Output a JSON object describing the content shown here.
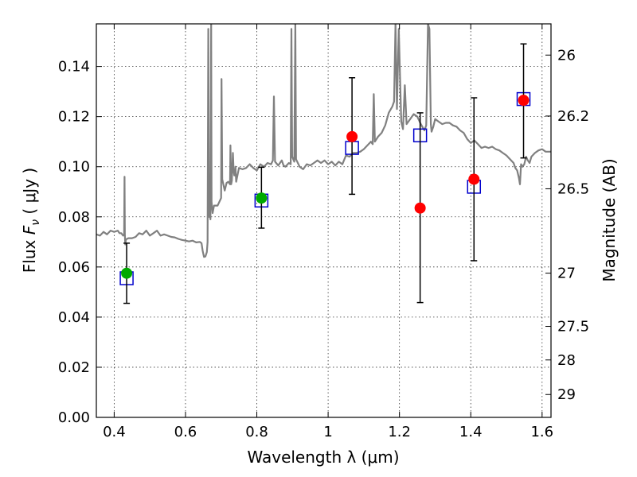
{
  "chart_data": {
    "type": "scatter",
    "xlabel": "Wavelength  λ (μm)",
    "ylabel": "Flux  F_ν  ( μJy )",
    "y2label": "Magnitude (AB)",
    "xlim": [
      0.35,
      1.625
    ],
    "ylim": [
      0.0,
      0.157
    ],
    "x_ticks": [
      0.4,
      0.6,
      0.8,
      1.0,
      1.2,
      1.4,
      1.6
    ],
    "x_tick_labels": [
      "0.4",
      "0.6",
      "0.8",
      "1",
      "1.2",
      "1.4",
      "1.6"
    ],
    "y_ticks": [
      0.0,
      0.02,
      0.04,
      0.06,
      0.08,
      0.1,
      0.12,
      0.14
    ],
    "y_tick_labels": [
      "0.00",
      "0.02",
      "0.04",
      "0.06",
      "0.08",
      "0.10",
      "0.12",
      "0.14"
    ],
    "mag_ticks": [
      {
        "mag": 26.0,
        "label": "26"
      },
      {
        "mag": 26.2,
        "label": "26.2"
      },
      {
        "mag": 26.5,
        "label": "26.5"
      },
      {
        "mag": 27.0,
        "label": "27"
      },
      {
        "mag": 27.5,
        "label": "27.5"
      },
      {
        "mag": 28.0,
        "label": "28"
      },
      {
        "mag": 29.0,
        "label": "29"
      }
    ],
    "grid": true,
    "colors": {
      "spectrum": "#808080",
      "model_box": "#0000cc",
      "obs_green": "#00aa00",
      "obs_red": "#ff0000",
      "errorbar": "#000000"
    },
    "series": [
      {
        "kind": "template_spectrum",
        "points": [
          [
            0.35,
            0.073
          ],
          [
            0.36,
            0.0725
          ],
          [
            0.37,
            0.074
          ],
          [
            0.38,
            0.073
          ],
          [
            0.39,
            0.0745
          ],
          [
            0.4,
            0.074
          ],
          [
            0.41,
            0.0745
          ],
          [
            0.415,
            0.0735
          ],
          [
            0.42,
            0.0735
          ],
          [
            0.425,
            0.0725
          ],
          [
            0.428,
            0.073
          ],
          [
            0.429,
            0.096
          ],
          [
            0.43,
            0.073
          ],
          [
            0.431,
            0.069
          ],
          [
            0.433,
            0.071
          ],
          [
            0.44,
            0.0715
          ],
          [
            0.45,
            0.0715
          ],
          [
            0.46,
            0.072
          ],
          [
            0.47,
            0.0735
          ],
          [
            0.48,
            0.073
          ],
          [
            0.49,
            0.0745
          ],
          [
            0.5,
            0.0725
          ],
          [
            0.51,
            0.0735
          ],
          [
            0.52,
            0.0745
          ],
          [
            0.53,
            0.0725
          ],
          [
            0.54,
            0.073
          ],
          [
            0.55,
            0.0725
          ],
          [
            0.56,
            0.072
          ],
          [
            0.57,
            0.0718
          ],
          [
            0.58,
            0.0712
          ],
          [
            0.59,
            0.0708
          ],
          [
            0.6,
            0.0705
          ],
          [
            0.61,
            0.0702
          ],
          [
            0.62,
            0.0705
          ],
          [
            0.63,
            0.0698
          ],
          [
            0.64,
            0.07
          ],
          [
            0.645,
            0.0695
          ],
          [
            0.648,
            0.0665
          ],
          [
            0.652,
            0.064
          ],
          [
            0.656,
            0.0642
          ],
          [
            0.66,
            0.066
          ],
          [
            0.662,
            0.07
          ],
          [
            0.664,
            0.155
          ],
          [
            0.666,
            0.08
          ],
          [
            0.668,
            0.082
          ],
          [
            0.67,
            0.079
          ],
          [
            0.672,
            0.157
          ],
          [
            0.673,
            0.086
          ],
          [
            0.676,
            0.0815
          ],
          [
            0.68,
            0.0845
          ],
          [
            0.69,
            0.0845
          ],
          [
            0.7,
            0.0875
          ],
          [
            0.701,
            0.135
          ],
          [
            0.703,
            0.095
          ],
          [
            0.71,
            0.0905
          ],
          [
            0.715,
            0.0935
          ],
          [
            0.72,
            0.094
          ],
          [
            0.725,
            0.093
          ],
          [
            0.726,
            0.1085
          ],
          [
            0.728,
            0.093
          ],
          [
            0.73,
            0.0945
          ],
          [
            0.733,
            0.1055
          ],
          [
            0.735,
            0.0985
          ],
          [
            0.737,
            0.0965
          ],
          [
            0.739,
            0.0965
          ],
          [
            0.74,
            0.1
          ],
          [
            0.742,
            0.094
          ],
          [
            0.75,
            0.0995
          ],
          [
            0.76,
            0.099
          ],
          [
            0.77,
            0.0995
          ],
          [
            0.78,
            0.101
          ],
          [
            0.79,
            0.0995
          ],
          [
            0.8,
            0.0985
          ],
          [
            0.81,
            0.101
          ],
          [
            0.82,
            0.1
          ],
          [
            0.83,
            0.1015
          ],
          [
            0.84,
            0.101
          ],
          [
            0.845,
            0.1025
          ],
          [
            0.848,
            0.128
          ],
          [
            0.851,
            0.102
          ],
          [
            0.86,
            0.1005
          ],
          [
            0.87,
            0.1025
          ],
          [
            0.875,
            0.1005
          ],
          [
            0.88,
            0.1
          ],
          [
            0.89,
            0.1015
          ],
          [
            0.895,
            0.101
          ],
          [
            0.897,
            0.155
          ],
          [
            0.899,
            0.104
          ],
          [
            0.905,
            0.102
          ],
          [
            0.908,
            0.157
          ],
          [
            0.91,
            0.103
          ],
          [
            0.92,
            0.1
          ],
          [
            0.93,
            0.099
          ],
          [
            0.94,
            0.101
          ],
          [
            0.95,
            0.1005
          ],
          [
            0.96,
            0.1015
          ],
          [
            0.97,
            0.1025
          ],
          [
            0.98,
            0.1015
          ],
          [
            0.99,
            0.1025
          ],
          [
            1.0,
            0.101
          ],
          [
            1.01,
            0.102
          ],
          [
            1.02,
            0.1005
          ],
          [
            1.03,
            0.102
          ],
          [
            1.04,
            0.101
          ],
          [
            1.05,
            0.1045
          ],
          [
            1.06,
            0.104
          ],
          [
            1.07,
            0.1055
          ],
          [
            1.08,
            0.1055
          ],
          [
            1.09,
            0.106
          ],
          [
            1.1,
            0.107
          ],
          [
            1.11,
            0.1085
          ],
          [
            1.12,
            0.11
          ],
          [
            1.125,
            0.109
          ],
          [
            1.128,
            0.129
          ],
          [
            1.131,
            0.11
          ],
          [
            1.14,
            0.112
          ],
          [
            1.15,
            0.1135
          ],
          [
            1.16,
            0.1165
          ],
          [
            1.17,
            0.1215
          ],
          [
            1.18,
            0.124
          ],
          [
            1.185,
            0.126
          ],
          [
            1.189,
            0.157
          ],
          [
            1.193,
            0.123
          ],
          [
            1.198,
            0.155
          ],
          [
            1.205,
            0.118
          ],
          [
            1.21,
            0.115
          ],
          [
            1.215,
            0.1325
          ],
          [
            1.22,
            0.117
          ],
          [
            1.23,
            0.119
          ],
          [
            1.24,
            0.121
          ],
          [
            1.25,
            0.12
          ],
          [
            1.26,
            0.117
          ],
          [
            1.27,
            0.1145
          ],
          [
            1.275,
            0.1165
          ],
          [
            1.28,
            0.157
          ],
          [
            1.284,
            0.155
          ],
          [
            1.288,
            0.117
          ],
          [
            1.29,
            0.114
          ],
          [
            1.295,
            0.116
          ],
          [
            1.3,
            0.119
          ],
          [
            1.31,
            0.118
          ],
          [
            1.32,
            0.117
          ],
          [
            1.33,
            0.1175
          ],
          [
            1.34,
            0.1175
          ],
          [
            1.35,
            0.1165
          ],
          [
            1.36,
            0.116
          ],
          [
            1.37,
            0.1145
          ],
          [
            1.38,
            0.1135
          ],
          [
            1.39,
            0.111
          ],
          [
            1.4,
            0.1095
          ],
          [
            1.41,
            0.1105
          ],
          [
            1.42,
            0.109
          ],
          [
            1.43,
            0.1075
          ],
          [
            1.44,
            0.108
          ],
          [
            1.45,
            0.1075
          ],
          [
            1.46,
            0.108
          ],
          [
            1.47,
            0.107
          ],
          [
            1.48,
            0.1065
          ],
          [
            1.49,
            0.1055
          ],
          [
            1.5,
            0.1045
          ],
          [
            1.51,
            0.103
          ],
          [
            1.52,
            0.1015
          ],
          [
            1.525,
            0.0995
          ],
          [
            1.53,
            0.0985
          ],
          [
            1.535,
            0.0955
          ],
          [
            1.538,
            0.093
          ],
          [
            1.541,
            0.101
          ],
          [
            1.545,
            0.1
          ],
          [
            1.55,
            0.101
          ],
          [
            1.555,
            0.104
          ],
          [
            1.56,
            0.1025
          ],
          [
            1.565,
            0.1015
          ],
          [
            1.57,
            0.104
          ],
          [
            1.58,
            0.1055
          ],
          [
            1.59,
            0.1065
          ],
          [
            1.6,
            0.107
          ],
          [
            1.61,
            0.106
          ],
          [
            1.625,
            0.106
          ]
        ]
      },
      {
        "kind": "model_photometry",
        "marker": "open-square",
        "points": [
          {
            "x": 0.435,
            "y": 0.0555
          },
          {
            "x": 0.813,
            "y": 0.0865
          },
          {
            "x": 1.067,
            "y": 0.1075
          },
          {
            "x": 1.258,
            "y": 0.1125
          },
          {
            "x": 1.409,
            "y": 0.092
          },
          {
            "x": 1.548,
            "y": 0.127
          }
        ]
      },
      {
        "kind": "observed_photometry",
        "marker": "filled-circle",
        "points": [
          {
            "x": 0.435,
            "y": 0.0575,
            "yerr_low": 0.0455,
            "yerr_high": 0.0695,
            "color": "green"
          },
          {
            "x": 0.813,
            "y": 0.0875,
            "yerr_low": 0.0755,
            "yerr_high": 0.0998,
            "color": "green"
          },
          {
            "x": 1.067,
            "y": 0.112,
            "yerr_low": 0.089,
            "yerr_high": 0.1355,
            "color": "red"
          },
          {
            "x": 1.258,
            "y": 0.0835,
            "yerr_low": 0.0458,
            "yerr_high": 0.1215,
            "color": "red"
          },
          {
            "x": 1.409,
            "y": 0.095,
            "yerr_low": 0.0625,
            "yerr_high": 0.1275,
            "color": "red"
          },
          {
            "x": 1.548,
            "y": 0.1265,
            "yerr_low": 0.1035,
            "yerr_high": 0.149,
            "color": "red"
          }
        ]
      }
    ]
  }
}
